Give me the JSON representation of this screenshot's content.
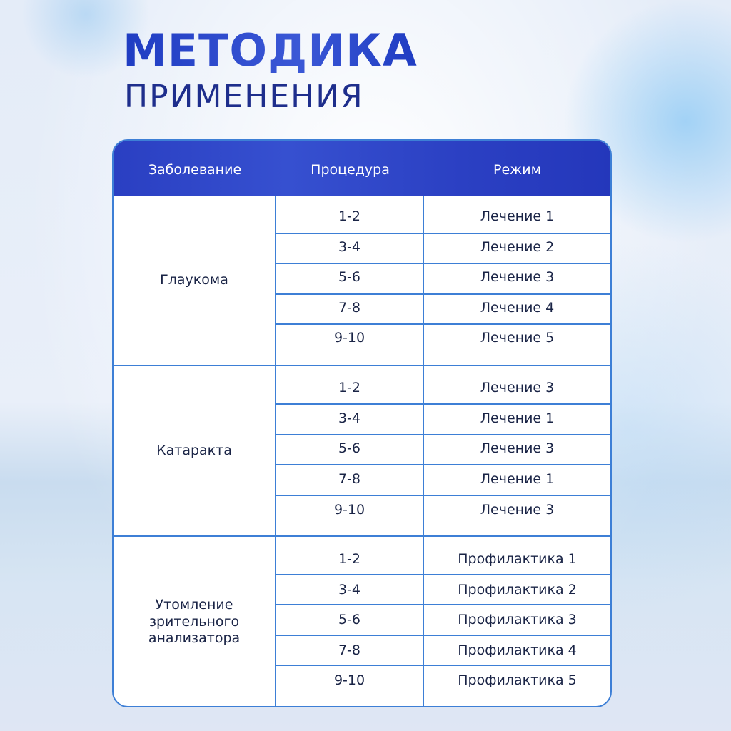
{
  "heading": {
    "title": "МЕТОДИКА",
    "subtitle": "ПРИМЕНЕНИЯ"
  },
  "table": {
    "columns": [
      "Заболевание",
      "Процедура",
      "Режим"
    ],
    "groups": [
      {
        "disease": [
          "Глаукома"
        ],
        "rows": [
          {
            "procedure": "1-2",
            "mode": "Лечение 1"
          },
          {
            "procedure": "3-4",
            "mode": "Лечение 2"
          },
          {
            "procedure": "5-6",
            "mode": "Лечение 3"
          },
          {
            "procedure": "7-8",
            "mode": "Лечение 4"
          },
          {
            "procedure": "9-10",
            "mode": "Лечение 5"
          }
        ]
      },
      {
        "disease": [
          "Катаракта"
        ],
        "rows": [
          {
            "procedure": "1-2",
            "mode": "Лечение 3"
          },
          {
            "procedure": "3-4",
            "mode": "Лечение 1"
          },
          {
            "procedure": "5-6",
            "mode": "Лечение 3"
          },
          {
            "procedure": "7-8",
            "mode": "Лечение 1"
          },
          {
            "procedure": "9-10",
            "mode": "Лечение 3"
          }
        ]
      },
      {
        "disease": [
          "Утомление",
          "зрительного",
          "анализатора"
        ],
        "rows": [
          {
            "procedure": "1-2",
            "mode": "Профилактика 1"
          },
          {
            "procedure": "3-4",
            "mode": "Профилактика 2"
          },
          {
            "procedure": "5-6",
            "mode": "Профилактика 3"
          },
          {
            "procedure": "7-8",
            "mode": "Профилактика 4"
          },
          {
            "procedure": "9-10",
            "mode": "Профилактика 5"
          }
        ]
      }
    ]
  }
}
